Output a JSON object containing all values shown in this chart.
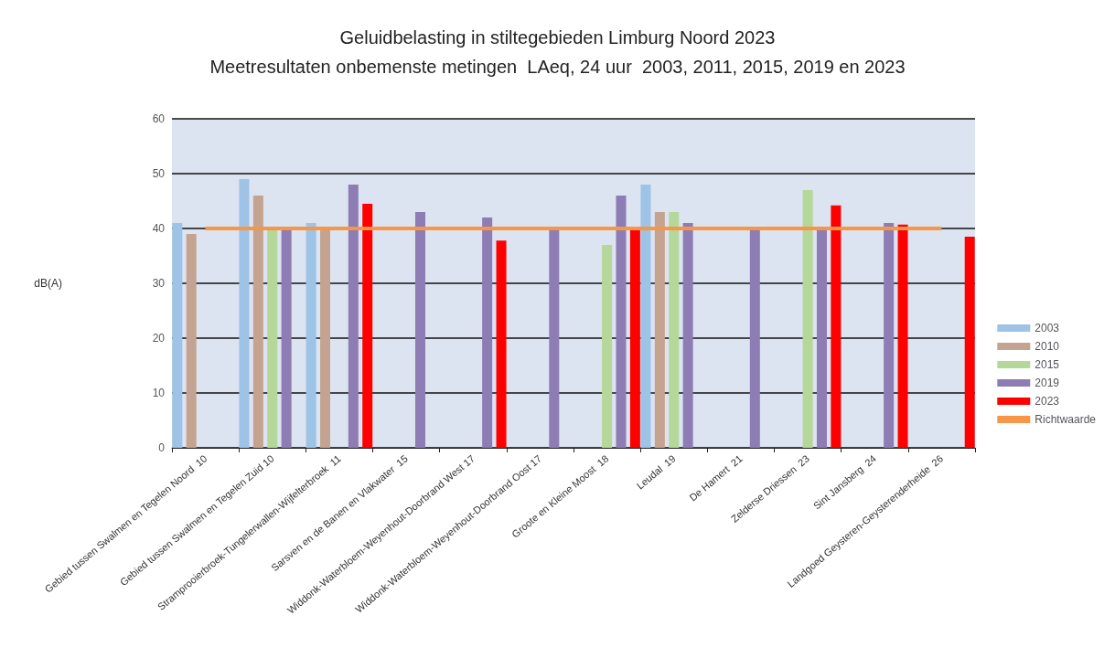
{
  "chart_data": {
    "type": "bar",
    "title": "Geluidbelasting in stiltegebieden Limburg Noord 2023",
    "subtitle": "Meetresultaten onbemenste metingen  LAeq, 24 uur  2003, 2011, 2015, 2019 en 2023",
    "ylabel": "dB(A)",
    "categories": [
      "Gebied tussen Swalmen en Tegelen Noord  10",
      "Gebied tussen Swalmen en Tegelen Zuid 10",
      "Stramprooierbroek-Tungelerwallen-Wijfelterbroek  11",
      "Sarsven en de Banen en Vlakwater  15",
      "Widdonk-Waterbloem-Weyenhout-Doorbrand West 17",
      "Widdonk-Waterbloem-Weyenhout-Doorbrand Oost 17",
      "Groote en Kleine Moost  18",
      "Leudal  19",
      "De Hamert  21",
      "Zelderse Driessen  23",
      "Sint Jansberg  24",
      "Landgoed Geysteren-Geysterenderheide  26"
    ],
    "series": [
      {
        "name": "2003",
        "color": "#9dc3e6",
        "values": [
          41,
          49,
          41,
          null,
          null,
          null,
          null,
          48,
          null,
          null,
          null,
          null
        ]
      },
      {
        "name": "2010",
        "color": "#c4a390",
        "values": [
          39,
          46,
          40,
          null,
          null,
          null,
          null,
          43,
          null,
          null,
          null,
          null
        ]
      },
      {
        "name": "2015",
        "color": "#b5d89a",
        "values": [
          null,
          40,
          null,
          null,
          null,
          null,
          37,
          43,
          null,
          47,
          null,
          null
        ]
      },
      {
        "name": "2019",
        "color": "#8e7cb4",
        "values": [
          null,
          40,
          48,
          43,
          42,
          40,
          46,
          41,
          40,
          40,
          41,
          null
        ]
      },
      {
        "name": "2023",
        "color": "#ff0000",
        "values": [
          null,
          null,
          44.5,
          null,
          37.8,
          null,
          40,
          null,
          null,
          44.2,
          40.7,
          38.5
        ]
      },
      {
        "name": "Richtwaarde",
        "type": "line",
        "color": "#f79646",
        "values": [
          40,
          40,
          40,
          40,
          40,
          40,
          40,
          40,
          40,
          40,
          40,
          40
        ]
      }
    ],
    "ylim": [
      0,
      60
    ],
    "yticks": [
      0,
      10,
      20,
      30,
      40,
      50,
      60
    ],
    "grid": "y",
    "legend": "right"
  }
}
